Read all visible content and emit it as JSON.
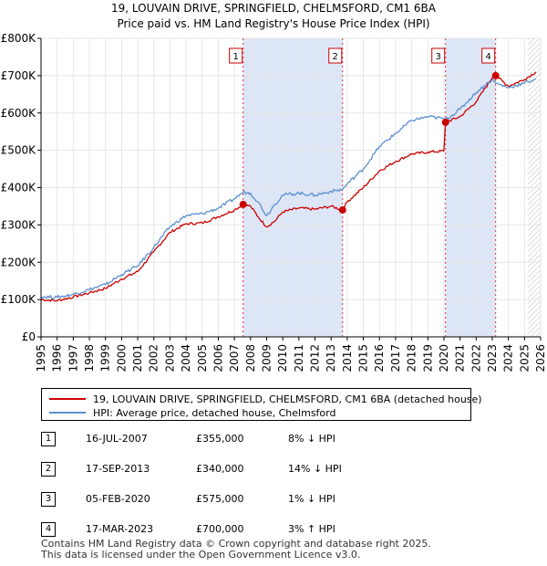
{
  "chart_data": {
    "type": "line",
    "title": "19, LOUVAIN DRIVE, SPRINGFIELD, CHELMSFORD, CM1 6BA",
    "subtitle": "Price paid vs. HM Land Registry's House Price Index (HPI)",
    "xlim": [
      1995,
      2026
    ],
    "ylim": [
      0,
      800000
    ],
    "x_ticks": [
      "1995",
      "1996",
      "1997",
      "1998",
      "1999",
      "2000",
      "2001",
      "2002",
      "2003",
      "2004",
      "2005",
      "2006",
      "2007",
      "2008",
      "2009",
      "2010",
      "2011",
      "2012",
      "2013",
      "2014",
      "2015",
      "2016",
      "2017",
      "2018",
      "2019",
      "2020",
      "2021",
      "2022",
      "2023",
      "2024",
      "2025",
      "2026"
    ],
    "y_ticks": [
      {
        "value": 0,
        "label": "£0"
      },
      {
        "value": 100000,
        "label": "£100K"
      },
      {
        "value": 200000,
        "label": "£200K"
      },
      {
        "value": 300000,
        "label": "£300K"
      },
      {
        "value": 400000,
        "label": "£400K"
      },
      {
        "value": 500000,
        "label": "£500K"
      },
      {
        "value": 600000,
        "label": "£600K"
      },
      {
        "value": 700000,
        "label": "£700K"
      },
      {
        "value": 800000,
        "label": "£800K"
      }
    ],
    "shaded_periods": [
      [
        2007.54,
        2013.71
      ],
      [
        2020.1,
        2023.21
      ]
    ],
    "future_from": 2025.2,
    "series": [
      {
        "name": "19, LOUVAIN DRIVE, SPRINGFIELD, CHELMSFORD, CM1 6BA (detached house)",
        "color": "#cc0000",
        "points": [
          [
            1995.0,
            100000
          ],
          [
            1996.0,
            97000
          ],
          [
            1997.0,
            107000
          ],
          [
            1998.0,
            118000
          ],
          [
            1999.0,
            130000
          ],
          [
            2000.0,
            155000
          ],
          [
            2001.0,
            175000
          ],
          [
            2002.0,
            228000
          ],
          [
            2003.0,
            280000
          ],
          [
            2004.0,
            303000
          ],
          [
            2005.0,
            305000
          ],
          [
            2006.0,
            322000
          ],
          [
            2007.0,
            340000
          ],
          [
            2007.54,
            355000
          ],
          [
            2008.0,
            350000
          ],
          [
            2008.5,
            320000
          ],
          [
            2009.0,
            295000
          ],
          [
            2009.5,
            310000
          ],
          [
            2010.0,
            335000
          ],
          [
            2011.0,
            345000
          ],
          [
            2012.0,
            342000
          ],
          [
            2013.0,
            350000
          ],
          [
            2013.71,
            340000
          ],
          [
            2014.0,
            362000
          ],
          [
            2015.0,
            400000
          ],
          [
            2016.0,
            445000
          ],
          [
            2017.0,
            470000
          ],
          [
            2018.0,
            490000
          ],
          [
            2019.0,
            495000
          ],
          [
            2020.0,
            498000
          ],
          [
            2020.1,
            575000
          ],
          [
            2021.0,
            590000
          ],
          [
            2022.0,
            630000
          ],
          [
            2023.0,
            695000
          ],
          [
            2023.21,
            700000
          ],
          [
            2024.0,
            672000
          ],
          [
            2025.0,
            690000
          ],
          [
            2025.7,
            710000
          ]
        ],
        "noise": 3500
      },
      {
        "name": "HPI: Average price, detached house, Chelmsford",
        "color": "#5b8fd0",
        "points": [
          [
            1995.0,
            108000
          ],
          [
            1996.0,
            106000
          ],
          [
            1997.0,
            114000
          ],
          [
            1998.0,
            127000
          ],
          [
            1999.0,
            140000
          ],
          [
            2000.0,
            167000
          ],
          [
            2001.0,
            190000
          ],
          [
            2002.0,
            240000
          ],
          [
            2003.0,
            295000
          ],
          [
            2004.0,
            325000
          ],
          [
            2005.0,
            330000
          ],
          [
            2006.0,
            345000
          ],
          [
            2007.0,
            370000
          ],
          [
            2007.54,
            388000
          ],
          [
            2008.0,
            385000
          ],
          [
            2008.5,
            360000
          ],
          [
            2009.0,
            325000
          ],
          [
            2009.5,
            355000
          ],
          [
            2010.0,
            380000
          ],
          [
            2011.0,
            385000
          ],
          [
            2012.0,
            380000
          ],
          [
            2013.0,
            390000
          ],
          [
            2013.71,
            395000
          ],
          [
            2014.0,
            410000
          ],
          [
            2015.0,
            450000
          ],
          [
            2016.0,
            510000
          ],
          [
            2017.0,
            545000
          ],
          [
            2018.0,
            580000
          ],
          [
            2019.0,
            590000
          ],
          [
            2020.0,
            585000
          ],
          [
            2020.1,
            582000
          ],
          [
            2021.0,
            610000
          ],
          [
            2022.0,
            655000
          ],
          [
            2023.0,
            690000
          ],
          [
            2023.21,
            680000
          ],
          [
            2024.0,
            668000
          ],
          [
            2025.0,
            680000
          ],
          [
            2025.7,
            692000
          ]
        ],
        "noise": 4500
      }
    ],
    "sales": [
      {
        "label": "1",
        "x": 2007.54,
        "value": 355000
      },
      {
        "label": "2",
        "x": 2013.71,
        "value": 340000
      },
      {
        "label": "3",
        "x": 2020.1,
        "value": 575000
      },
      {
        "label": "4",
        "x": 2023.21,
        "value": 700000
      }
    ]
  },
  "legend": {
    "property_label": "19, LOUVAIN DRIVE, SPRINGFIELD, CHELMSFORD, CM1 6BA (detached house)",
    "hpi_label": "HPI: Average price, detached house, Chelmsford",
    "property_color": "#cc0000",
    "hpi_color": "#5b8fd0"
  },
  "sales_table": [
    {
      "num": "1",
      "date": "16-JUL-2007",
      "price": "£355,000",
      "hpi": "8% ↓ HPI"
    },
    {
      "num": "2",
      "date": "17-SEP-2013",
      "price": "£340,000",
      "hpi": "14% ↓ HPI"
    },
    {
      "num": "3",
      "date": "05-FEB-2020",
      "price": "£575,000",
      "hpi": "1% ↓ HPI"
    },
    {
      "num": "4",
      "date": "17-MAR-2023",
      "price": "£700,000",
      "hpi": "3% ↑ HPI"
    }
  ],
  "footer": {
    "line1": "Contains HM Land Registry data © Crown copyright and database right 2025.",
    "line2": "This data is licensed under the Open Government Licence v3.0."
  }
}
